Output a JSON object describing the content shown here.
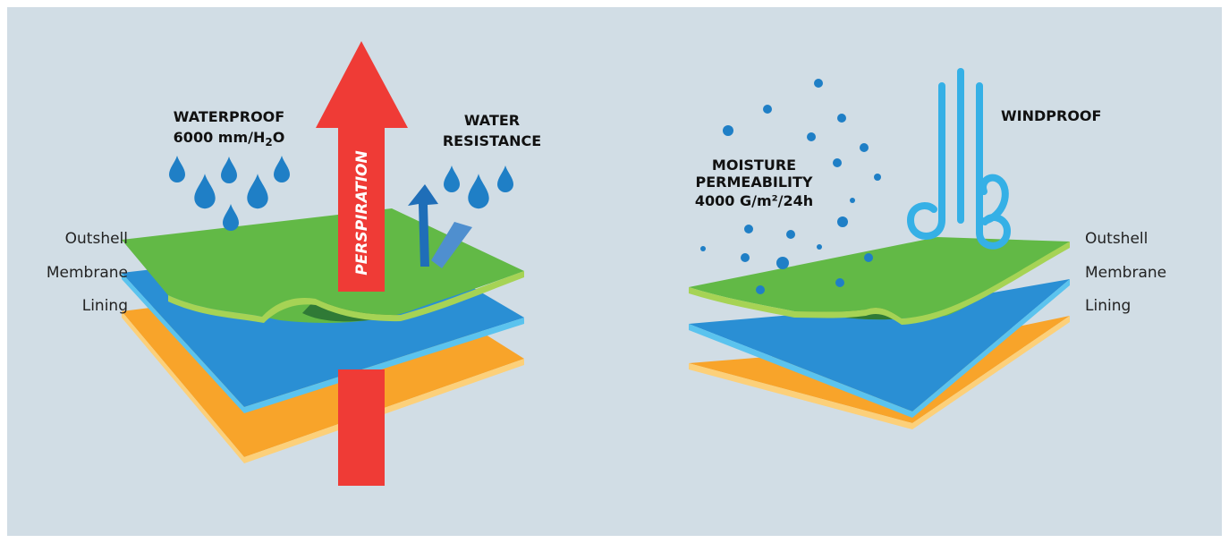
{
  "left_panel": {
    "layer_labels": [
      "Outshell",
      "Membrane",
      "Lining"
    ],
    "waterproof_title": "WATERPROOF",
    "waterproof_value_prefix": "6000 mm/H",
    "waterproof_value_sub": "2",
    "waterproof_value_suffix": "O",
    "perspiration_label": "PERSPIRATION",
    "water_resistance_line1": "WATER",
    "water_resistance_line2": "RESISTANCE"
  },
  "right_panel": {
    "layer_labels": [
      "Outshell",
      "Membrane",
      "Lining"
    ],
    "moisture_line1": "MOISTURE",
    "moisture_line2": "PERMEABILITY",
    "moisture_line3": "4000 G/m²/24h",
    "windproof_label": "WINDPROOF"
  },
  "colors": {
    "background": "#d1dde5",
    "outshell": "#62b946",
    "membrane": "#2a8fd4",
    "lining": "#f8a42a",
    "perspiration_arrow": "#ef3b36",
    "water_drop": "#1f7fc6",
    "wind": "#35b0e6"
  },
  "icons": [
    "water-drop-icon",
    "arrow-up-icon",
    "bounce-arrow-icon",
    "wind-icon",
    "moisture-dot-icon"
  ]
}
